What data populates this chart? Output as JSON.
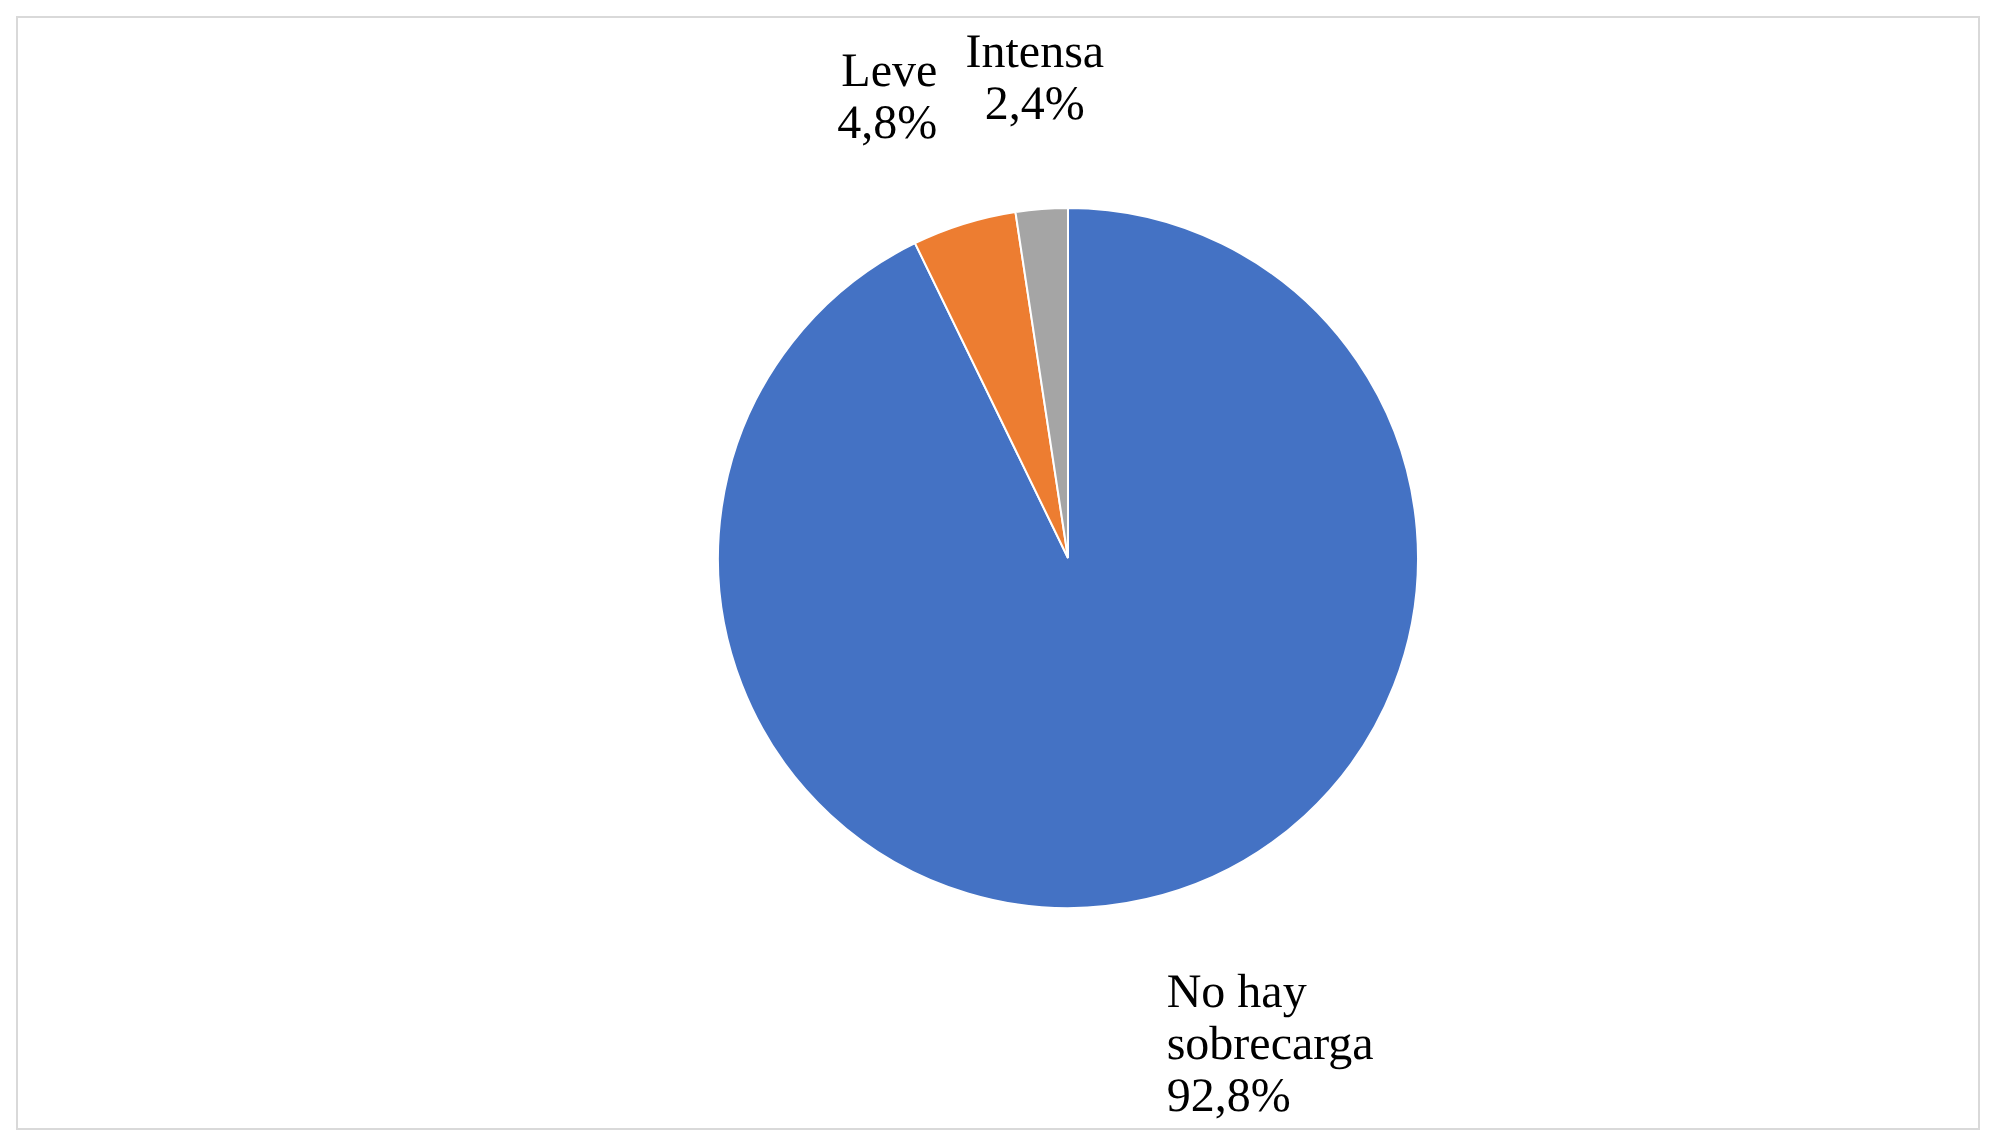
{
  "chart_data": {
    "type": "pie",
    "categories": [
      "No hay sobrecarga",
      "Leve",
      "Intensa"
    ],
    "values": [
      92.8,
      4.8,
      2.4
    ],
    "colors": [
      "#4472c4",
      "#ed7d31",
      "#a5a5a5"
    ],
    "value_labels": [
      "92,8%",
      "4,8%",
      "2,4%"
    ],
    "legend": false
  }
}
